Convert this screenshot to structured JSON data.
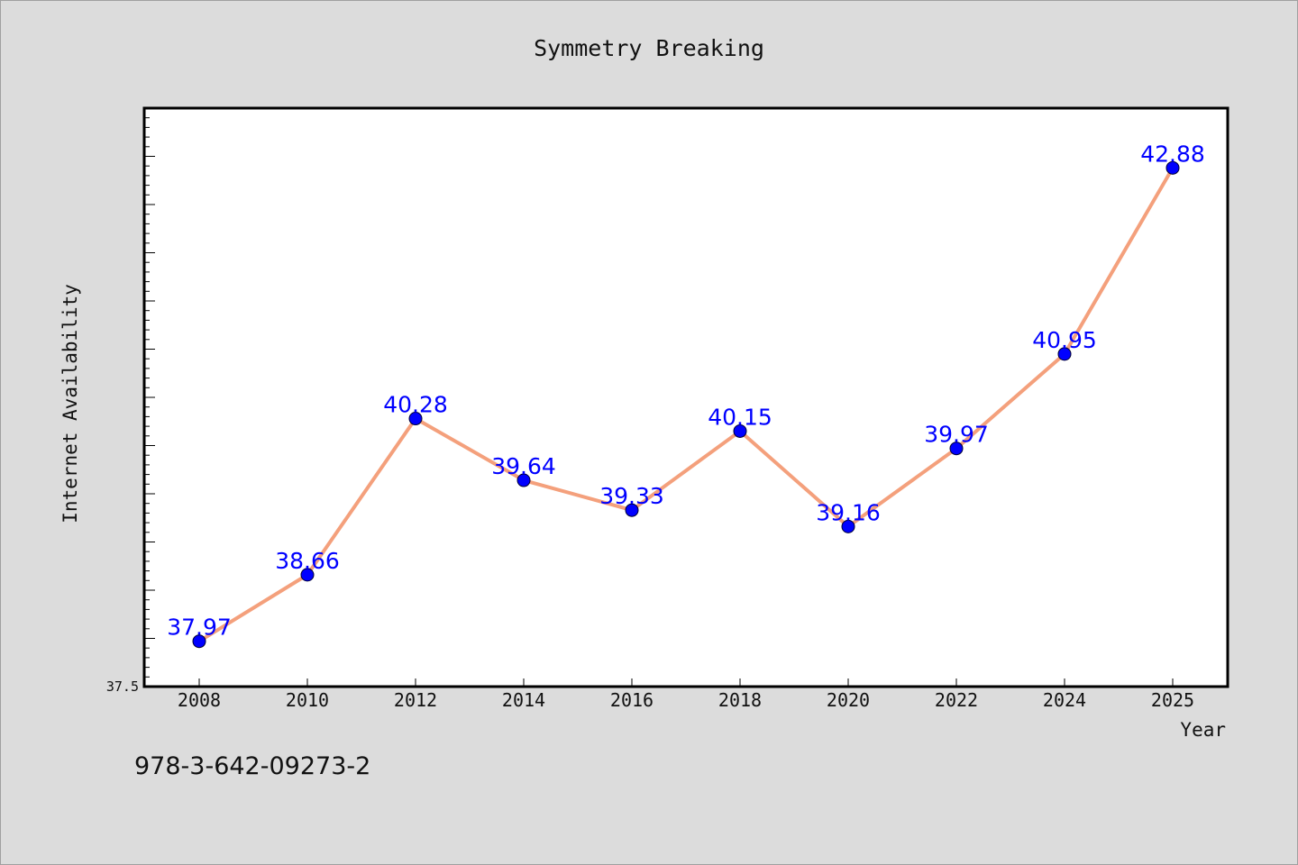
{
  "chart_data": {
    "type": "line",
    "title": "Symmetry Breaking",
    "xlabel": "Year",
    "ylabel": "Internet Availability",
    "categories": [
      "2008",
      "2010",
      "2012",
      "2014",
      "2016",
      "2018",
      "2020",
      "2022",
      "2024",
      "2025"
    ],
    "series": [
      {
        "values": [
          37.97,
          38.66,
          40.28,
          39.64,
          39.33,
          40.15,
          39.16,
          39.97,
          40.95,
          42.88
        ]
      }
    ],
    "data_labels": [
      "37.97",
      "38.66",
      "40.28",
      "39.64",
      "39.33",
      "40.15",
      "39.16",
      "39.97",
      "40.95",
      "42.88"
    ],
    "y_tick_labels": [
      "37.5"
    ],
    "ylim": [
      37.5,
      43.5
    ],
    "grid": false,
    "legend": "none",
    "colors": {
      "line": "#f4a07c",
      "marker": "#0000ff",
      "label": "#0000ff",
      "background": "#dcdcdc",
      "plot_area": "#ffffff"
    }
  },
  "footer": {
    "isbn": "978-3-642-09273-2"
  }
}
